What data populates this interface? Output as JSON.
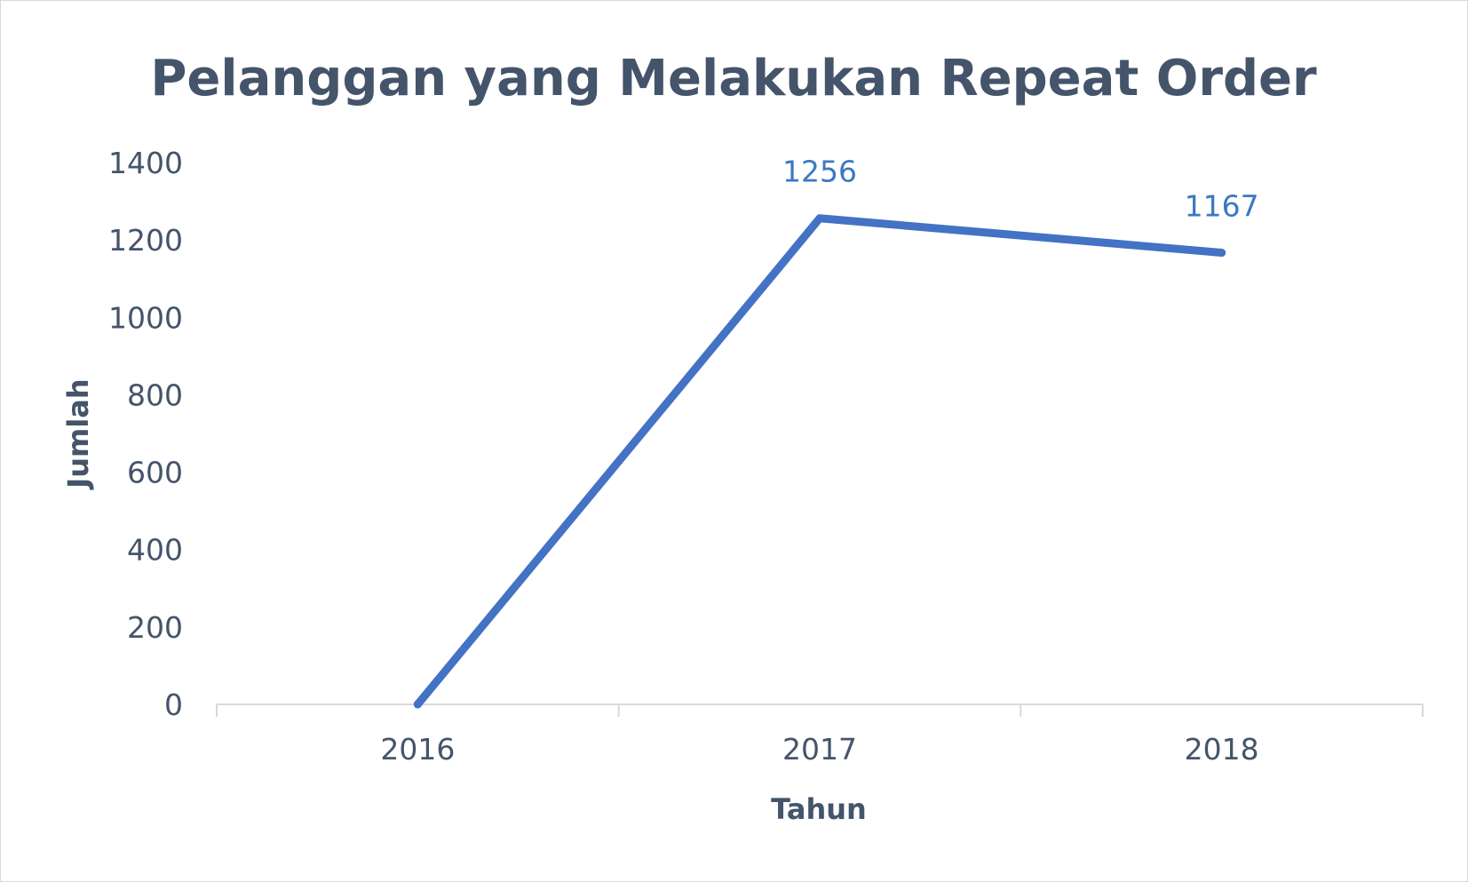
{
  "chart_data": {
    "type": "line",
    "title": "Pelanggan yang Melakukan Repeat Order",
    "xlabel": "Tahun",
    "ylabel": "Jumlah",
    "categories": [
      "2016",
      "2017",
      "2018"
    ],
    "series": [
      {
        "values": [
          0,
          1256,
          1167
        ],
        "data_labels": [
          "",
          "1256",
          "1167"
        ]
      }
    ],
    "ylim": [
      0,
      1400
    ],
    "yticks": [
      0,
      200,
      400,
      600,
      800,
      1000,
      1200,
      1400
    ],
    "grid": false,
    "legend": "none",
    "line_color": "#4472c4",
    "label_color": "#3c78c2",
    "text_color": "#44546a",
    "axis_color": "#d9d9d9"
  }
}
